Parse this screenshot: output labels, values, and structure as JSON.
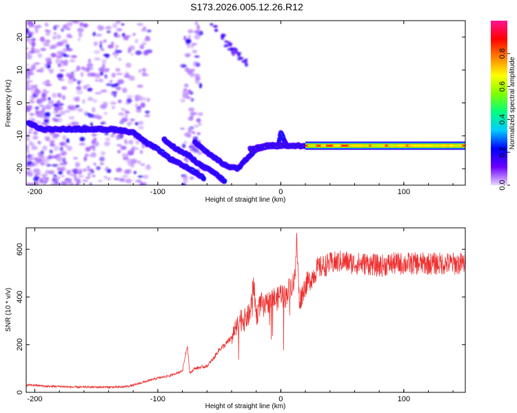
{
  "title": "S173.2026.005.12.26.R12",
  "chart_data": [
    {
      "type": "heatmap",
      "xlabel": "Height of straight line (km)",
      "ylabel": "Frequency (Hz)",
      "xlim": [
        -207,
        150
      ],
      "ylim": [
        -25,
        25
      ],
      "xticks": [
        -200,
        -100,
        0,
        100
      ],
      "yticks": [
        -20,
        -10,
        0,
        10,
        20
      ],
      "grid": false,
      "colorbar": {
        "label": "Normalized spectral amplitude",
        "range": [
          0,
          1
        ],
        "ticks": [
          "0.0",
          "0.2",
          "0.4",
          "0.6",
          "0.8"
        ],
        "tick_values": [
          0.0,
          0.2,
          0.4,
          0.6,
          0.8
        ],
        "colormap": "rainbow",
        "colors": [
          "#e9d6ff",
          "#6a00ff",
          "#0000ff",
          "#00ccff",
          "#00ff80",
          "#80ff00",
          "#ffff00",
          "#ff8000",
          "#ff0000",
          "#ff1493"
        ]
      },
      "ridges": [
        {
          "points": [
            [
              -205,
              -6
            ],
            [
              -195,
              -8
            ],
            [
              -175,
              -8
            ],
            [
              -150,
              -8
            ],
            [
              -135,
              -8
            ],
            [
              -120,
              -9
            ],
            [
              -110,
              -12
            ],
            [
              -100,
              -14
            ],
            [
              -90,
              -17
            ],
            [
              -80,
              -19
            ],
            [
              -70,
              -21
            ],
            [
              -62,
              -23
            ]
          ],
          "amplitude": 0.3
        },
        {
          "points": [
            [
              -95,
              -11
            ],
            [
              -85,
              -14
            ],
            [
              -75,
              -16
            ],
            [
              -65,
              -19
            ],
            [
              -55,
              -21
            ],
            [
              -45,
              -24
            ]
          ],
          "amplitude": 0.25
        },
        {
          "points": [
            [
              -70,
              -12
            ],
            [
              -60,
              -15
            ],
            [
              -45,
              -19
            ],
            [
              -35,
              -20
            ],
            [
              -28,
              -17
            ],
            [
              -20,
              -14
            ],
            [
              -10,
              -13
            ],
            [
              -2,
              -13
            ],
            [
              0,
              -9
            ],
            [
              5,
              -13
            ]
          ],
          "amplitude": 0.3
        },
        {
          "points": [
            [
              -25,
              -14
            ],
            [
              -10,
              -13
            ],
            [
              5,
              -13
            ],
            [
              15,
              -13
            ],
            [
              60,
              -13
            ],
            [
              100,
              -13
            ],
            [
              150,
              -13
            ]
          ],
          "amplitude": 0.85
        }
      ]
    },
    {
      "type": "line",
      "xlabel": "Height of straight line (km)",
      "ylabel": "SNR (10 * v/v)",
      "xlim": [
        -207,
        150
      ],
      "ylim": [
        0,
        690
      ],
      "xticks": [
        -200,
        -100,
        0,
        100
      ],
      "yticks": [
        0,
        200,
        400,
        600
      ],
      "grid": false,
      "color": "#ee3030",
      "series": [
        {
          "x": [
            -207,
            -200,
            -190,
            -180,
            -170,
            -160,
            -150,
            -140,
            -130,
            -125,
            -120,
            -110,
            -100,
            -90,
            -80,
            -76,
            -74,
            -70,
            -60,
            -55,
            -50,
            -45,
            -40,
            -35,
            -32,
            -30,
            -25,
            -22,
            -20,
            -16,
            -14,
            -10,
            -6,
            -4,
            0,
            4,
            6,
            10,
            12,
            13,
            15,
            20,
            25,
            30,
            35,
            40,
            50,
            60,
            70,
            80,
            90,
            100,
            110,
            120,
            130,
            140,
            150
          ],
          "y": [
            30,
            30,
            25,
            25,
            22,
            22,
            22,
            22,
            22,
            25,
            30,
            45,
            60,
            70,
            90,
            200,
            80,
            100,
            110,
            140,
            180,
            200,
            230,
            280,
            320,
            300,
            330,
            460,
            320,
            380,
            350,
            380,
            400,
            380,
            420,
            400,
            430,
            460,
            520,
            640,
            380,
            450,
            480,
            520,
            530,
            540,
            550,
            540,
            540,
            530,
            540,
            540,
            540,
            540,
            540,
            540,
            540
          ],
          "noise_amplitude": 80
        }
      ]
    }
  ]
}
